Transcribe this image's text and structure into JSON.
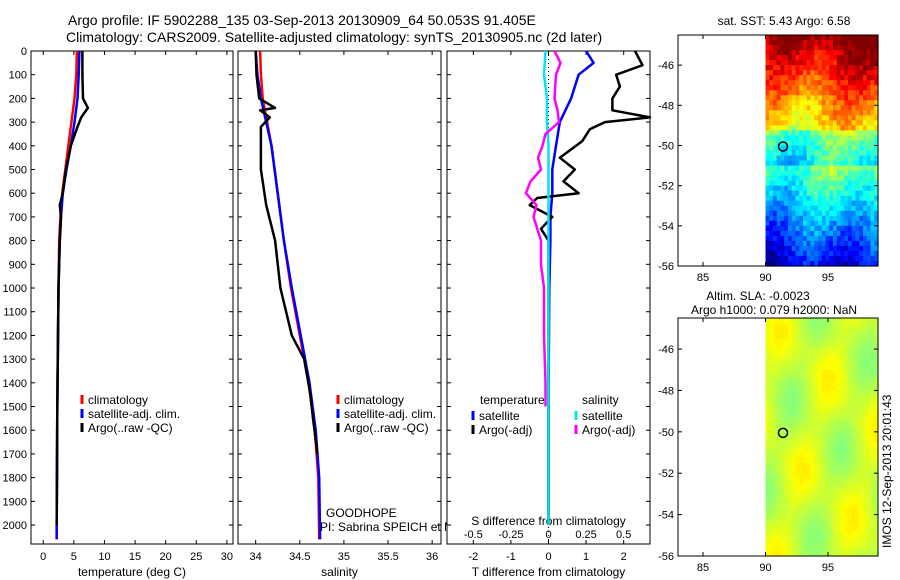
{
  "header": {
    "title_line1": "Argo profile: IF 5902288_135 03-Sep-2013 20130909_64 50.053S 91.405E",
    "title_line2": "Climatology: CARS2009. Satellite-adjusted climatology: synTS_20130905.nc (2d later)"
  },
  "colors": {
    "climatology": "#ff0000",
    "satellite": "#0000ff",
    "argo": "#000000",
    "sal_satellite": "#00e5ee",
    "sal_argo": "#ff00ff"
  },
  "chart_data": [
    {
      "id": "temperature",
      "type": "line",
      "xlabel": "temperature (deg C)",
      "xlim": [
        -2,
        31
      ],
      "ylim": [
        2080,
        0
      ],
      "xticks": [
        0,
        5,
        10,
        15,
        20,
        25,
        30
      ],
      "xtick_labels": [
        "0",
        "5",
        "10",
        "15",
        "20",
        "25",
        "30"
      ],
      "yticks": [
        0,
        100,
        200,
        300,
        400,
        500,
        600,
        700,
        800,
        900,
        1000,
        1100,
        1200,
        1300,
        1400,
        1500,
        1600,
        1700,
        1800,
        1900,
        2000
      ],
      "ytick_labels": [
        "0",
        "100",
        "200",
        "300",
        "400",
        "500",
        "600",
        "700",
        "800",
        "900",
        "1000",
        "1100",
        "1200",
        "1300",
        "1400",
        "1500",
        "1600",
        "1700",
        "1800",
        "1900",
        "2000"
      ],
      "legend": [
        "climatology",
        "satellite-adj. clim.",
        "Argo(..raw -QC)"
      ],
      "series": [
        {
          "name": "climatology",
          "color_key": "climatology",
          "depth": [
            0,
            100,
            200,
            300,
            400,
            500,
            600,
            700,
            800,
            1000,
            1500,
            2000,
            2060
          ],
          "values": [
            5.5,
            5.4,
            5.1,
            4.6,
            4.1,
            3.6,
            3.1,
            2.8,
            2.6,
            2.5,
            2.3,
            2.2,
            2.2
          ]
        },
        {
          "name": "satellite-adj. clim.",
          "color_key": "satellite",
          "depth": [
            0,
            100,
            200,
            300,
            400,
            500,
            600,
            700,
            800,
            1000,
            1500,
            2000,
            2060
          ],
          "values": [
            5.9,
            5.8,
            5.6,
            5.1,
            4.5,
            3.8,
            3.2,
            2.9,
            2.7,
            2.5,
            2.3,
            2.2,
            2.2
          ]
        },
        {
          "name": "Argo(..raw -QC)",
          "color_key": "argo",
          "depth": [
            0,
            100,
            200,
            240,
            280,
            320,
            400,
            500,
            600,
            650,
            700,
            800,
            1000,
            1500,
            2000
          ],
          "values": [
            6.4,
            6.4,
            6.5,
            7.3,
            6.2,
            5.6,
            4.5,
            3.7,
            3.2,
            2.7,
            2.9,
            2.7,
            2.5,
            2.3,
            2.2
          ]
        }
      ]
    },
    {
      "id": "salinity",
      "type": "line",
      "xlabel": "salinity",
      "xlim": [
        33.8,
        36.1
      ],
      "ylim": [
        2080,
        0
      ],
      "xticks": [
        34,
        34.5,
        35,
        35.5,
        36
      ],
      "xtick_labels": [
        "34",
        "34.5",
        "35",
        "35.5",
        "36"
      ],
      "legend": [
        "climatology",
        "satellite-adj. clim.",
        "Argo(..raw -QC)"
      ],
      "annotation_line1": "GOODHOPE",
      "annotation_line2": "PI: Sabrina SPEICH et Michel ARHAN",
      "series": [
        {
          "name": "climatology",
          "color_key": "climatology",
          "depth": [
            0,
            100,
            200,
            300,
            400,
            600,
            800,
            1000,
            1200,
            1400,
            1600,
            1800,
            2060
          ],
          "values": [
            34.05,
            34.06,
            34.08,
            34.13,
            34.18,
            34.25,
            34.32,
            34.4,
            34.5,
            34.6,
            34.67,
            34.71,
            34.72
          ]
        },
        {
          "name": "satellite-adj. clim.",
          "color_key": "satellite",
          "depth": [
            0,
            100,
            200,
            300,
            400,
            600,
            800,
            1000,
            1200,
            1400,
            1600,
            1800,
            2060
          ],
          "values": [
            34.0,
            34.02,
            34.06,
            34.12,
            34.18,
            34.25,
            34.32,
            34.41,
            34.51,
            34.61,
            34.68,
            34.72,
            34.73
          ]
        },
        {
          "name": "Argo(..raw -QC)",
          "color_key": "argo",
          "depth": [
            0,
            100,
            200,
            240,
            250,
            280,
            320,
            400,
            500,
            650,
            800,
            1000,
            1200,
            1300,
            1450,
            1550,
            1700
          ],
          "values": [
            34.0,
            34.01,
            34.04,
            34.22,
            34.05,
            34.16,
            34.06,
            34.06,
            34.06,
            34.12,
            34.22,
            34.28,
            34.41,
            34.55,
            34.62,
            34.65,
            34.7
          ]
        }
      ]
    },
    {
      "id": "difference",
      "type": "line",
      "xlabel": "T difference from climatology",
      "xlabel_top": "S difference from climatology",
      "xlim": [
        -2.7,
        2.7
      ],
      "ylim": [
        2080,
        0
      ],
      "xticks": [
        -2,
        -1,
        0,
        1,
        2
      ],
      "xtick_labels": [
        "-2",
        "-1",
        "0",
        "1",
        "2"
      ],
      "xticks_sal": [
        -0.5,
        -0.25,
        0,
        0.25,
        0.5
      ],
      "xtick_labels_sal": [
        "-0.5",
        "-0.25",
        "0",
        "0.25",
        "0.5"
      ],
      "sal_scale_per_T": 0.25,
      "legend_heading_temp": "temperature",
      "legend_heading_sal": "salinity",
      "legend": [
        "satellite",
        "Argo(-adj)",
        "satellite",
        "Argo(-adj)"
      ],
      "series": [
        {
          "name": "temperature satellite",
          "color_key": "satellite",
          "depth": [
            0,
            50,
            100,
            200,
            300,
            400,
            500,
            600,
            700,
            800,
            1000,
            1500,
            2000
          ],
          "values": [
            1.0,
            1.2,
            0.8,
            0.6,
            0.3,
            0.2,
            0.1,
            0.1,
            0.05,
            0.05,
            0.02,
            0.0,
            0.0
          ]
        },
        {
          "name": "temperature Argo(-adj)",
          "color_key": "argo",
          "depth": [
            0,
            60,
            100,
            150,
            200,
            250,
            280,
            300,
            330,
            380,
            450,
            500,
            550,
            600,
            620,
            650,
            700,
            750,
            800,
            900,
            1000,
            1500,
            2000
          ],
          "values": [
            2.3,
            2.5,
            1.8,
            1.9,
            1.7,
            1.7,
            2.7,
            1.5,
            1.1,
            0.9,
            0.3,
            0.7,
            0.4,
            0.8,
            -0.3,
            -0.5,
            0.1,
            -0.2,
            0.0,
            0.0,
            0.0,
            0.0,
            0.0
          ]
        },
        {
          "name": "salinity satellite",
          "color_key": "sal_satellite",
          "depth": [
            0,
            100,
            200,
            300,
            400,
            600,
            800,
            1000,
            1200,
            1500,
            1800,
            2000
          ],
          "values": [
            -0.02,
            -0.03,
            -0.01,
            -0.01,
            0.0,
            0.0,
            0.0,
            0.0,
            0.0,
            0.0,
            0.0,
            0.0
          ]
        },
        {
          "name": "salinity Argo(-adj)",
          "color_key": "sal_argo",
          "depth": [
            0,
            50,
            100,
            200,
            250,
            300,
            350,
            400,
            450,
            500,
            550,
            600,
            650,
            700,
            800,
            900,
            1000,
            1200,
            1400,
            1500
          ],
          "values": [
            0.04,
            0.08,
            0.05,
            0.04,
            0.06,
            0.07,
            -0.02,
            -0.04,
            -0.07,
            -0.05,
            -0.12,
            -0.15,
            -0.08,
            -0.1,
            -0.05,
            -0.05,
            -0.03,
            -0.03,
            -0.02,
            -0.02
          ]
        }
      ]
    },
    {
      "id": "sst_map",
      "type": "heatmap",
      "title": "sat. SST: 5.43 Argo: 6.58",
      "xlim": [
        83,
        99
      ],
      "ylim": [
        -56,
        -44.5
      ],
      "xticks": [
        85,
        90,
        95
      ],
      "xtick_labels": [
        "85",
        "90",
        "95"
      ],
      "yticks": [
        -56,
        -54,
        -52,
        -50,
        -48,
        -46
      ],
      "ytick_labels": [
        "-56",
        "-54",
        "-52",
        "-50",
        "-48",
        "-46"
      ],
      "data_lon_start": 90,
      "marker": [
        91.4,
        -50.05
      ]
    },
    {
      "id": "sla_map",
      "type": "heatmap",
      "title_line1": "Altim. SLA: -0.0023",
      "title_line2": "Argo h1000: 0.079 h2000: NaN",
      "xlim": [
        83,
        99
      ],
      "ylim": [
        -56,
        -44.5
      ],
      "xticks": [
        85,
        90,
        95
      ],
      "xtick_labels": [
        "85",
        "90",
        "95"
      ],
      "yticks": [
        -56,
        -54,
        -52,
        -50,
        -48,
        -46
      ],
      "ytick_labels": [
        "-56",
        "-54",
        "-52",
        "-50",
        "-48",
        "-46"
      ],
      "data_lon_start": 90,
      "marker": [
        91.4,
        -50.05
      ],
      "side_label": "IMOS 12-Sep-2013 20:01:43"
    }
  ]
}
